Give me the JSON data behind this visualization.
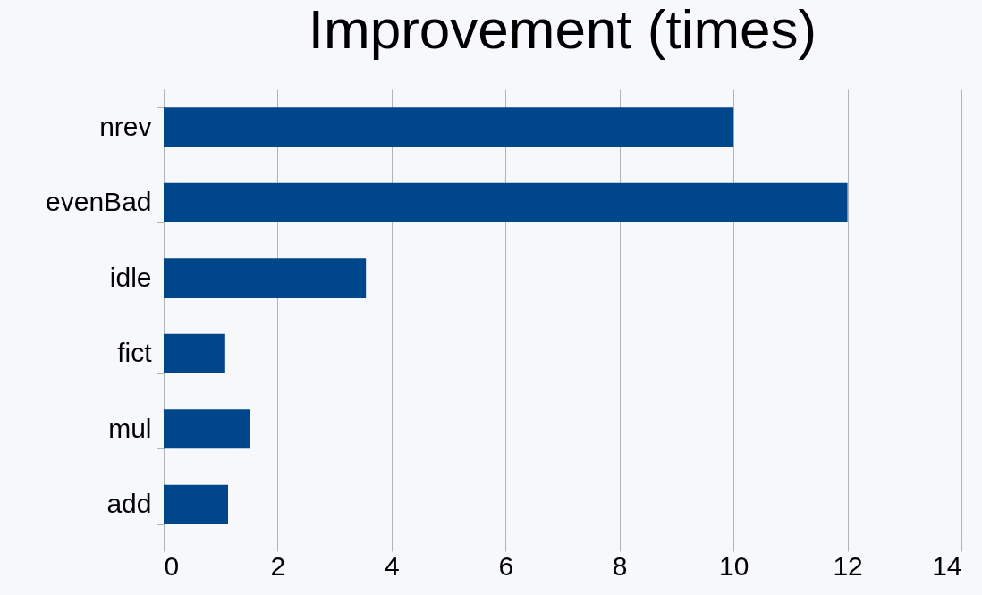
{
  "chart_data": {
    "type": "bar",
    "orientation": "horizontal",
    "title": "Improvement (times)",
    "categories": [
      "nrev",
      "evenBad",
      "idle",
      "fict",
      "mul",
      "add"
    ],
    "values": [
      10.0,
      12.0,
      3.55,
      1.08,
      1.52,
      1.13
    ],
    "color": "#00468b",
    "xlim": [
      0,
      14
    ],
    "xticks": [
      0,
      2,
      4,
      6,
      8,
      10,
      12,
      14
    ],
    "grid": "x"
  }
}
